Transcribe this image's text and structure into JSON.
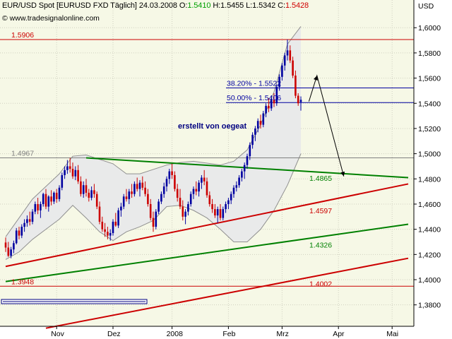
{
  "header": {
    "symbol": "EUR/USD Spot [EURUSD FXD  Täglich]",
    "date": "24.03.2008",
    "open_label": "O:",
    "open": "1.5410",
    "high_label": "H:",
    "high": "1.5455",
    "low_label": "L:",
    "low": "1.5342",
    "close_label": "C:",
    "close": "1.5428"
  },
  "source": {
    "copyright": "©",
    "text": "www.tradesignalonline.com"
  },
  "currency_label": "USD",
  "chart_data": {
    "type": "candlestick",
    "title": "EUR/USD Spot [EURUSD FXD  Täglich]",
    "ylabel": "USD",
    "ylim": [
      1.363,
      1.622
    ],
    "yticks": [
      1.38,
      1.4,
      1.42,
      1.44,
      1.46,
      1.48,
      1.5,
      1.52,
      1.54,
      1.56,
      1.58,
      1.6
    ],
    "ytick_labels": [
      "1,3800",
      "1,4000",
      "1,4200",
      "1,4400",
      "1,4600",
      "1,4800",
      "1,5000",
      "1,5200",
      "1,5400",
      "1,5600",
      "1,5800",
      "1,6000"
    ],
    "x_months": [
      "Nov",
      "Dez",
      "2008",
      "Feb",
      "Mrz",
      "Apr",
      "Mai"
    ],
    "x_month_bar_index": [
      19,
      40,
      62,
      83,
      103,
      124,
      144
    ],
    "bars_total": 150,
    "grid": true,
    "series": [
      {
        "type": "candlestick",
        "ohlc": [
          [
            1.4295,
            1.4335,
            1.422,
            1.4255
          ],
          [
            1.4255,
            1.43,
            1.418,
            1.419
          ],
          [
            1.419,
            1.426,
            1.417,
            1.424
          ],
          [
            1.424,
            1.431,
            1.421,
            1.429
          ],
          [
            1.429,
            1.441,
            1.428,
            1.439
          ],
          [
            1.439,
            1.442,
            1.432,
            1.435
          ],
          [
            1.435,
            1.444,
            1.433,
            1.442
          ],
          [
            1.442,
            1.448,
            1.438,
            1.445
          ],
          [
            1.445,
            1.451,
            1.442,
            1.448
          ],
          [
            1.448,
            1.454,
            1.443,
            1.446
          ],
          [
            1.446,
            1.456,
            1.444,
            1.454
          ],
          [
            1.454,
            1.462,
            1.452,
            1.46
          ],
          [
            1.46,
            1.465,
            1.452,
            1.455
          ],
          [
            1.455,
            1.462,
            1.449,
            1.46
          ],
          [
            1.46,
            1.469,
            1.458,
            1.468
          ],
          [
            1.468,
            1.472,
            1.456,
            1.458
          ],
          [
            1.458,
            1.467,
            1.454,
            1.466
          ],
          [
            1.466,
            1.471,
            1.459,
            1.462
          ],
          [
            1.462,
            1.47,
            1.46,
            1.469
          ],
          [
            1.469,
            1.472,
            1.461,
            1.464
          ],
          [
            1.464,
            1.475,
            1.462,
            1.473
          ],
          [
            1.473,
            1.485,
            1.471,
            1.483
          ],
          [
            1.483,
            1.49,
            1.48,
            1.487
          ],
          [
            1.487,
            1.495,
            1.484,
            1.49
          ],
          [
            1.49,
            1.4967,
            1.485,
            1.488
          ],
          [
            1.488,
            1.493,
            1.48,
            1.482
          ],
          [
            1.482,
            1.49,
            1.479,
            1.487
          ],
          [
            1.487,
            1.491,
            1.476,
            1.478
          ],
          [
            1.478,
            1.482,
            1.466,
            1.468
          ],
          [
            1.468,
            1.478,
            1.465,
            1.475
          ],
          [
            1.475,
            1.48,
            1.466,
            1.469
          ],
          [
            1.469,
            1.472,
            1.462,
            1.465
          ],
          [
            1.465,
            1.474,
            1.463,
            1.471
          ],
          [
            1.471,
            1.476,
            1.465,
            1.468
          ],
          [
            1.468,
            1.47,
            1.456,
            1.458
          ],
          [
            1.458,
            1.462,
            1.444,
            1.446
          ],
          [
            1.446,
            1.45,
            1.438,
            1.44
          ],
          [
            1.44,
            1.445,
            1.434,
            1.438
          ],
          [
            1.438,
            1.442,
            1.432,
            1.435
          ],
          [
            1.435,
            1.44,
            1.431,
            1.437
          ],
          [
            1.437,
            1.448,
            1.435,
            1.446
          ],
          [
            1.446,
            1.453,
            1.442,
            1.443
          ],
          [
            1.443,
            1.457,
            1.441,
            1.455
          ],
          [
            1.455,
            1.461,
            1.45,
            1.458
          ],
          [
            1.458,
            1.468,
            1.456,
            1.466
          ],
          [
            1.466,
            1.472,
            1.462,
            1.464
          ],
          [
            1.464,
            1.472,
            1.46,
            1.47
          ],
          [
            1.47,
            1.476,
            1.465,
            1.468
          ],
          [
            1.468,
            1.478,
            1.466,
            1.476
          ],
          [
            1.476,
            1.481,
            1.47,
            1.472
          ],
          [
            1.472,
            1.479,
            1.466,
            1.477
          ],
          [
            1.477,
            1.482,
            1.471,
            1.473
          ],
          [
            1.473,
            1.478,
            1.466,
            1.468
          ],
          [
            1.468,
            1.472,
            1.458,
            1.46
          ],
          [
            1.46,
            1.464,
            1.447,
            1.449
          ],
          [
            1.449,
            1.454,
            1.438,
            1.442
          ],
          [
            1.442,
            1.456,
            1.44,
            1.454
          ],
          [
            1.454,
            1.464,
            1.452,
            1.462
          ],
          [
            1.462,
            1.47,
            1.46,
            1.468
          ],
          [
            1.468,
            1.477,
            1.465,
            1.474
          ],
          [
            1.474,
            1.482,
            1.47,
            1.48
          ],
          [
            1.48,
            1.488,
            1.476,
            1.486
          ],
          [
            1.486,
            1.492,
            1.48,
            1.483
          ],
          [
            1.483,
            1.486,
            1.47,
            1.472
          ],
          [
            1.472,
            1.476,
            1.462,
            1.465
          ],
          [
            1.465,
            1.472,
            1.456,
            1.458
          ],
          [
            1.458,
            1.463,
            1.447,
            1.45
          ],
          [
            1.45,
            1.456,
            1.444,
            1.454
          ],
          [
            1.454,
            1.462,
            1.451,
            1.46
          ],
          [
            1.46,
            1.47,
            1.458,
            1.468
          ],
          [
            1.468,
            1.474,
            1.464,
            1.472
          ],
          [
            1.472,
            1.478,
            1.467,
            1.47
          ],
          [
            1.47,
            1.479,
            1.466,
            1.477
          ],
          [
            1.477,
            1.483,
            1.472,
            1.481
          ],
          [
            1.481,
            1.487,
            1.475,
            1.478
          ],
          [
            1.478,
            1.481,
            1.465,
            1.467
          ],
          [
            1.467,
            1.47,
            1.458,
            1.46
          ],
          [
            1.46,
            1.464,
            1.453,
            1.456
          ],
          [
            1.456,
            1.46,
            1.449,
            1.451
          ],
          [
            1.451,
            1.458,
            1.445,
            1.456
          ],
          [
            1.456,
            1.46,
            1.447,
            1.449
          ],
          [
            1.449,
            1.458,
            1.447,
            1.456
          ],
          [
            1.456,
            1.462,
            1.453,
            1.46
          ],
          [
            1.46,
            1.465,
            1.456,
            1.463
          ],
          [
            1.463,
            1.47,
            1.46,
            1.468
          ],
          [
            1.468,
            1.475,
            1.465,
            1.473
          ],
          [
            1.473,
            1.478,
            1.47,
            1.475
          ],
          [
            1.475,
            1.483,
            1.473,
            1.481
          ],
          [
            1.481,
            1.488,
            1.478,
            1.486
          ],
          [
            1.486,
            1.493,
            1.48,
            1.491
          ],
          [
            1.491,
            1.5,
            1.488,
            1.498
          ],
          [
            1.498,
            1.509,
            1.495,
            1.507
          ],
          [
            1.507,
            1.517,
            1.504,
            1.515
          ],
          [
            1.515,
            1.522,
            1.51,
            1.52
          ],
          [
            1.52,
            1.528,
            1.517,
            1.526
          ],
          [
            1.526,
            1.531,
            1.52,
            1.523
          ],
          [
            1.523,
            1.534,
            1.521,
            1.532
          ],
          [
            1.532,
            1.54,
            1.529,
            1.538
          ],
          [
            1.538,
            1.544,
            1.533,
            1.536
          ],
          [
            1.536,
            1.545,
            1.534,
            1.543
          ],
          [
            1.543,
            1.548,
            1.537,
            1.54
          ],
          [
            1.54,
            1.555,
            1.538,
            1.553
          ],
          [
            1.553,
            1.563,
            1.55,
            1.561
          ],
          [
            1.561,
            1.572,
            1.558,
            1.57
          ],
          [
            1.57,
            1.58,
            1.566,
            1.578
          ],
          [
            1.578,
            1.5906,
            1.574,
            1.582
          ],
          [
            1.582,
            1.586,
            1.572,
            1.574
          ],
          [
            1.574,
            1.577,
            1.56,
            1.562
          ],
          [
            1.562,
            1.566,
            1.544,
            1.546
          ],
          [
            1.546,
            1.548,
            1.538,
            1.54
          ],
          [
            1.541,
            1.5455,
            1.5342,
            1.5428
          ]
        ]
      },
      {
        "name": "",
        "type": "bollinger_upper",
        "x_bars": [
          0,
          10,
          20,
          25,
          30,
          40,
          45,
          50,
          60,
          65,
          70,
          80,
          85,
          90,
          95,
          100,
          105,
          110
        ],
        "values": [
          1.434,
          1.464,
          1.484,
          1.498,
          1.499,
          1.492,
          1.484,
          1.484,
          1.491,
          1.493,
          1.494,
          1.491,
          1.494,
          1.503,
          1.523,
          1.549,
          1.587,
          1.601
        ]
      },
      {
        "name": "",
        "type": "bollinger_lower",
        "x_bars": [
          0,
          5,
          10,
          15,
          20,
          25,
          30,
          35,
          40,
          45,
          50,
          55,
          60,
          65,
          70,
          75,
          80,
          85,
          90,
          95,
          100,
          105,
          110
        ],
        "values": [
          1.416,
          1.422,
          1.432,
          1.44,
          1.448,
          1.459,
          1.449,
          1.438,
          1.431,
          1.438,
          1.442,
          1.447,
          1.458,
          1.459,
          1.455,
          1.449,
          1.44,
          1.43,
          1.43,
          1.44,
          1.455,
          1.475,
          1.5
        ]
      }
    ],
    "horizontal_levels": [
      {
        "value": 1.5906,
        "label": "1.5906",
        "color": "#cc0000"
      },
      {
        "value": 1.4967,
        "label": "1.4967",
        "color": "#808080"
      },
      {
        "value": 1.3948,
        "label": "1.3948",
        "color": "#cc0000"
      }
    ],
    "fibonacci_levels": [
      {
        "value": 1.5522,
        "label": "38.20% - 1.5522",
        "color": "#0000a0"
      },
      {
        "value": 1.5406,
        "label": "50.00% - 1.5406",
        "color": "#0000a0"
      }
    ],
    "trendlines": [
      {
        "color": "#008000",
        "points": [
          [
            1.4967,
            30
          ],
          [
            1.481,
            150
          ]
        ],
        "label": "1.4865"
      },
      {
        "color": "#cc0000",
        "points": [
          [
            1.4105,
            0
          ],
          [
            1.476,
            150
          ]
        ],
        "label": "1.4597"
      },
      {
        "color": "#008000",
        "points": [
          [
            1.3985,
            0
          ],
          [
            1.444,
            150
          ]
        ],
        "label": "1.4326"
      },
      {
        "color": "#cc0000",
        "points": [
          [
            1.3615,
            15
          ],
          [
            1.417,
            150
          ]
        ],
        "label": "1.4002"
      }
    ],
    "projection_arrow": {
      "points": [
        [
          1.5415,
          113
        ],
        [
          1.562,
          116
        ],
        [
          1.482,
          126
        ]
      ],
      "color": "#000000"
    },
    "annotations": [
      {
        "text": "erstellt von oegeat",
        "color": "#000080",
        "bold": true
      }
    ]
  },
  "colors": {
    "background": "#f6f8e6",
    "grid": "#d0d0c0",
    "up_candle": "#0000a0",
    "down_candle": "#cc0000",
    "bollinger": "#909090",
    "bollinger_fill": "#e9eaea"
  }
}
